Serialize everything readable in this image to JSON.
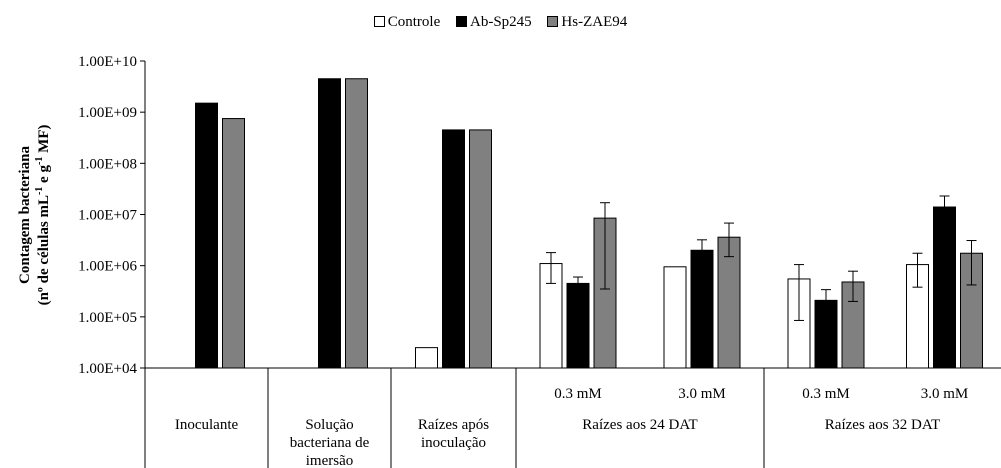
{
  "chart_data": {
    "type": "bar",
    "y_scale": "log",
    "ylim": [
      10000,
      10000000000
    ],
    "yticks": [
      "1.00E+04",
      "1.00E+05",
      "1.00E+06",
      "1.00E+07",
      "1.00E+08",
      "1.00E+09",
      "1.00E+10"
    ],
    "ylabel_line1": "Contagem bacteriana",
    "ylabel_line2_parts": [
      "(nº de células mL",
      "-1",
      " e g",
      "-1",
      " MF)"
    ],
    "grid": false,
    "legend_position": "top-center",
    "series": [
      {
        "name": "Controle",
        "color": "#ffffff"
      },
      {
        "name": "Ab-Sp245",
        "color": "#000000"
      },
      {
        "name": "Hs-ZAE94",
        "color": "#808080"
      }
    ],
    "groups": [
      {
        "label": "Inoculante",
        "subgroups": [
          {
            "label": "",
            "values": [
              null,
              1500000000,
              750000000
            ],
            "errors": [
              null,
              null,
              null
            ]
          }
        ]
      },
      {
        "label": "Solução bacteriana de imersão",
        "subgroups": [
          {
            "label": "",
            "values": [
              null,
              4500000000,
              4500000000
            ],
            "errors": [
              null,
              null,
              null
            ]
          }
        ]
      },
      {
        "label": "Raízes após inoculação",
        "subgroups": [
          {
            "label": "",
            "values": [
              25000,
              450000000,
              450000000
            ],
            "errors": [
              null,
              null,
              null
            ]
          }
        ]
      },
      {
        "label": "Raízes aos 24 DAT",
        "subgroups": [
          {
            "label": "0.3 mM",
            "values": [
              1100000,
              450000,
              8500000
            ],
            "errors": [
              [
                450000,
                1800000
              ],
              [
                350000,
                600000
              ],
              [
                350000,
                17000000
              ]
            ]
          },
          {
            "label": "3.0 mM",
            "values": [
              950000,
              2000000,
              3600000
            ],
            "errors": [
              null,
              [
                1100000,
                3200000
              ],
              [
                1500000,
                6800000
              ]
            ]
          }
        ]
      },
      {
        "label": "Raízes aos 32 DAT",
        "subgroups": [
          {
            "label": "0.3 mM",
            "values": [
              550000,
              210000,
              480000
            ],
            "errors": [
              [
                85000,
                1050000
              ],
              [
                100000,
                340000
              ],
              [
                200000,
                780000
              ]
            ]
          },
          {
            "label": "3.0 mM",
            "values": [
              1050000,
              14000000,
              1750000
            ],
            "errors": [
              [
                380000,
                1750000
              ],
              [
                5200000,
                23000000
              ],
              [
                420000,
                3100000
              ]
            ]
          }
        ]
      }
    ]
  }
}
